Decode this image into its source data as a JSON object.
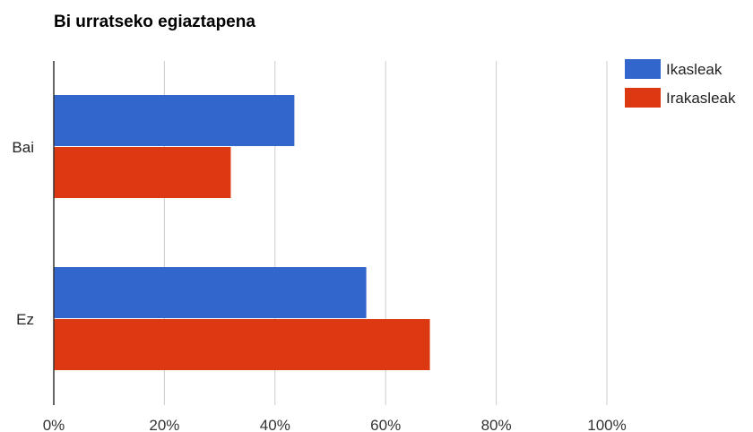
{
  "chart_data": {
    "type": "bar",
    "orientation": "horizontal",
    "title": "Bi urratseko egiaztapena",
    "categories": [
      "Bai",
      "Ez"
    ],
    "series": [
      {
        "name": "Ikasleak",
        "color": "#3366cc",
        "values": [
          43.5,
          56.5
        ]
      },
      {
        "name": "Irakasleak",
        "color": "#dc3912",
        "values": [
          32,
          68
        ]
      }
    ],
    "xlim": [
      0,
      100
    ],
    "xticks": [
      "0%",
      "20%",
      "40%",
      "60%",
      "80%",
      "100%"
    ],
    "grid": true,
    "legend_position": "right"
  }
}
